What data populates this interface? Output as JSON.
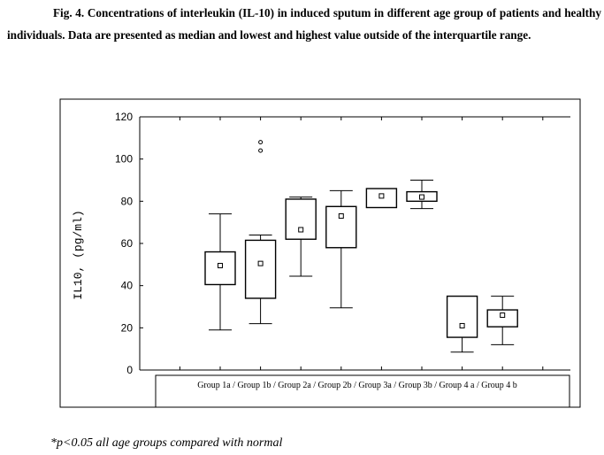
{
  "caption": {
    "prefix": "Fig. 4.",
    "text": "Concentrations of interleukin (IL-10) in induced sputum in different age group of patients and healthy individuals. Data are presented as median and lowest and highest value outside of the interquartile range."
  },
  "footnote": "*p<0.05 all age groups compared with normal",
  "chart_data": {
    "type": "box",
    "title": "",
    "ylabel": "IL10, (pg/ml)",
    "xlabel": "Group 1a / Group 1b / Group 2a / Group 2b / Group 3a / Group 3b / Group 4 a / Group 4 b",
    "ylim": [
      0,
      120
    ],
    "yticks": [
      0,
      20,
      40,
      60,
      80,
      100,
      120
    ],
    "grid": false,
    "categories": [
      "Group 1a",
      "Group 1b",
      "Group 2a",
      "Group 2b",
      "Group 3a",
      "Group 3b",
      "Group 4 a",
      "Group 4 b"
    ],
    "boxes": [
      {
        "min": 19,
        "q1": 40.5,
        "median": 49.5,
        "q3": 56,
        "max": 74,
        "outliers": []
      },
      {
        "min": 22,
        "q1": 34,
        "median": 50.5,
        "q3": 61.5,
        "max": 64,
        "outliers": [
          104,
          108
        ]
      },
      {
        "min": 44.5,
        "q1": 62,
        "median": 66.5,
        "q3": 81,
        "max": 82,
        "outliers": []
      },
      {
        "min": 29.5,
        "q1": 58,
        "median": 73,
        "q3": 77.5,
        "max": 85,
        "outliers": []
      },
      {
        "min": 77,
        "q1": 77,
        "median": 82.5,
        "q3": 86,
        "max": 86,
        "outliers": []
      },
      {
        "min": 76.5,
        "q1": 80,
        "median": 82,
        "q3": 84.5,
        "max": 90,
        "outliers": []
      },
      {
        "min": 8.5,
        "q1": 15.5,
        "median": 21,
        "q3": 35,
        "max": 35,
        "outliers": []
      },
      {
        "min": 12,
        "q1": 20.5,
        "median": 26,
        "q3": 28.5,
        "max": 35,
        "outliers": []
      }
    ]
  }
}
